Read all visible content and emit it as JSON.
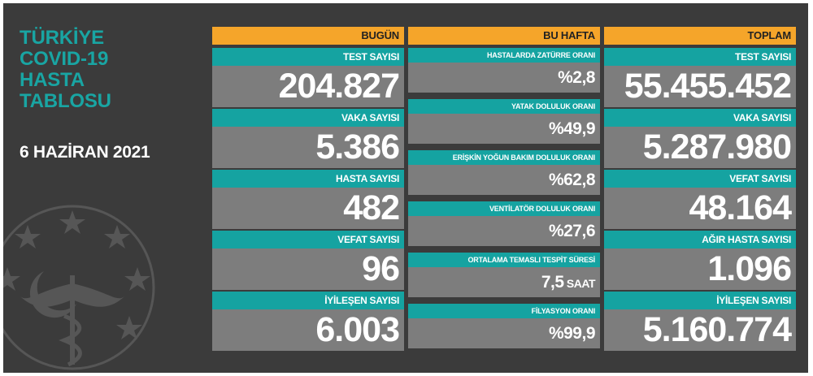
{
  "title_lines": [
    "TÜRKİYE",
    "COVID-19",
    "HASTA",
    "TABLOSU"
  ],
  "date": "6 HAZİRAN 2021",
  "colors": {
    "background": "#3b3b3b",
    "header": "#f5a52a",
    "label": "#15a3a1",
    "value_bg": "#7d7d7d",
    "title": "#19a5a3"
  },
  "icons": [
    "ministry-emblem-icon"
  ],
  "today": {
    "header": "BUGÜN",
    "items": [
      {
        "label": "TEST SAYISI",
        "value": "204.827"
      },
      {
        "label": "VAKA SAYISI",
        "value": "5.386"
      },
      {
        "label": "HASTA SAYISI",
        "value": "482"
      },
      {
        "label": "VEFAT SAYISI",
        "value": "96"
      },
      {
        "label": "İYİLEŞEN SAYISI",
        "value": "6.003"
      }
    ]
  },
  "week": {
    "header": "BU HAFTA",
    "items": [
      {
        "label": "HASTALARDA ZATÜRRE ORANI",
        "value": "%2,8",
        "unit": ""
      },
      {
        "label": "YATAK DOLULUK ORANI",
        "value": "%49,9",
        "unit": ""
      },
      {
        "label": "ERİŞKİN YOĞUN BAKIM DOLULUK ORANI",
        "value": "%62,8",
        "unit": ""
      },
      {
        "label": "VENTİLATÖR DOLULUK ORANI",
        "value": "%27,6",
        "unit": ""
      },
      {
        "label": "ORTALAMA TEMASLI TESPİT SÜRESİ",
        "value": "7,5",
        "unit": " SAAT"
      },
      {
        "label": "FİLYASYON ORANI",
        "value": "%99,9",
        "unit": ""
      }
    ]
  },
  "total": {
    "header": "TOPLAM",
    "items": [
      {
        "label": "TEST SAYISI",
        "value": "55.455.452"
      },
      {
        "label": "VAKA SAYISI",
        "value": "5.287.980"
      },
      {
        "label": "VEFAT SAYISI",
        "value": "48.164"
      },
      {
        "label": "AĞIR HASTA SAYISI",
        "value": "1.096"
      },
      {
        "label": "İYİLEŞEN SAYISI",
        "value": "5.160.774"
      }
    ]
  }
}
